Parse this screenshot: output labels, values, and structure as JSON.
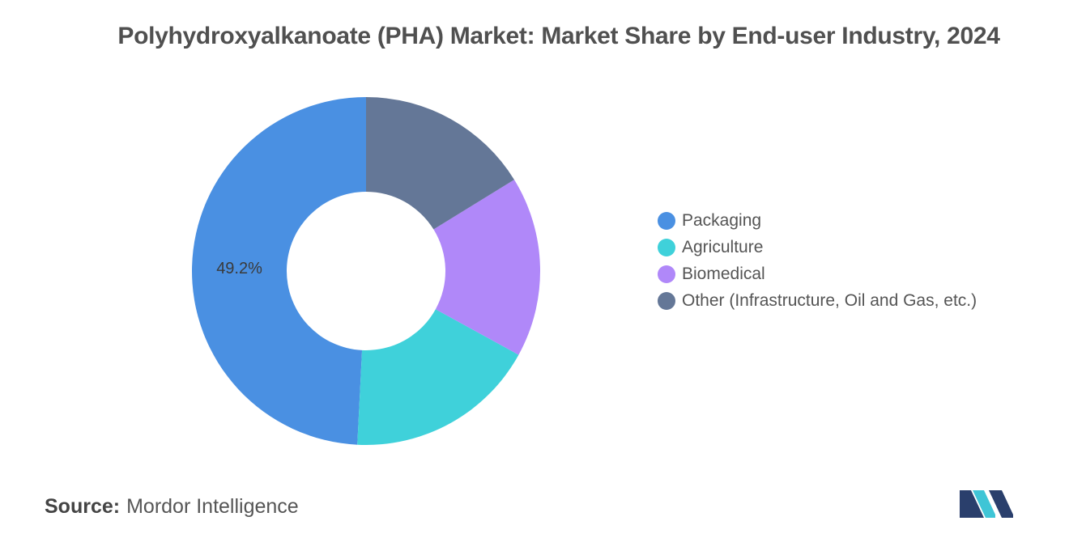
{
  "chart_data": {
    "type": "pie",
    "donut": true,
    "title": "Polyhydroxyalkanoate (PHA) Market: Market Share by End-user Industry, 2024",
    "categories": [
      "Packaging",
      "Agriculture",
      "Biomedical",
      "Other (Infrastructure, Oil and Gas, etc.)"
    ],
    "values": [
      49.2,
      17.8,
      16.8,
      16.2
    ],
    "colors": [
      "#4a90e2",
      "#3fd1da",
      "#b088f9",
      "#647797"
    ],
    "data_labels": [
      "49.2%",
      null,
      null,
      null
    ],
    "legend_position": "right"
  },
  "source": {
    "label": "Source:",
    "text": "Mordor Intelligence"
  },
  "logo": {
    "icon": "mordor-intelligence-logo-icon",
    "colors": [
      "#2a3f6c",
      "#3fc5d6"
    ]
  }
}
